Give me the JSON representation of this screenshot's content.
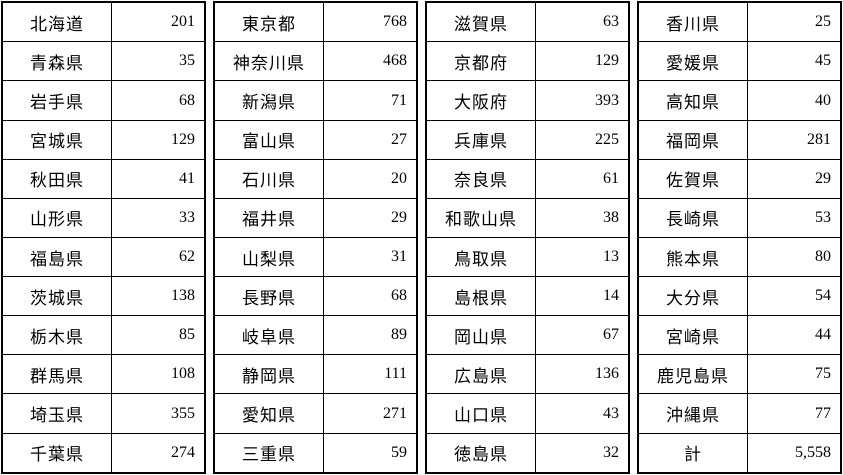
{
  "accent_colors": {
    "border": "#000000",
    "background": "#ffffff",
    "text": "#000000"
  },
  "table": {
    "description_names": [
      "prefecture",
      "value"
    ],
    "total_label": "計",
    "total_value": "5,558",
    "columns": [
      {
        "rows": [
          {
            "name": "北海道",
            "value": "201"
          },
          {
            "name": "青森県",
            "value": "35"
          },
          {
            "name": "岩手県",
            "value": "68"
          },
          {
            "name": "宮城県",
            "value": "129"
          },
          {
            "name": "秋田県",
            "value": "41"
          },
          {
            "name": "山形県",
            "value": "33"
          },
          {
            "name": "福島県",
            "value": "62"
          },
          {
            "name": "茨城県",
            "value": "138"
          },
          {
            "name": "栃木県",
            "value": "85"
          },
          {
            "name": "群馬県",
            "value": "108"
          },
          {
            "name": "埼玉県",
            "value": "355"
          },
          {
            "name": "千葉県",
            "value": "274"
          }
        ]
      },
      {
        "rows": [
          {
            "name": "東京都",
            "value": "768"
          },
          {
            "name": "神奈川県",
            "value": "468"
          },
          {
            "name": "新潟県",
            "value": "71"
          },
          {
            "name": "富山県",
            "value": "27"
          },
          {
            "name": "石川県",
            "value": "20"
          },
          {
            "name": "福井県",
            "value": "29"
          },
          {
            "name": "山梨県",
            "value": "31"
          },
          {
            "name": "長野県",
            "value": "68"
          },
          {
            "name": "岐阜県",
            "value": "89"
          },
          {
            "name": "静岡県",
            "value": "111"
          },
          {
            "name": "愛知県",
            "value": "271"
          },
          {
            "name": "三重県",
            "value": "59"
          }
        ]
      },
      {
        "rows": [
          {
            "name": "滋賀県",
            "value": "63"
          },
          {
            "name": "京都府",
            "value": "129"
          },
          {
            "name": "大阪府",
            "value": "393"
          },
          {
            "name": "兵庫県",
            "value": "225"
          },
          {
            "name": "奈良県",
            "value": "61"
          },
          {
            "name": "和歌山県",
            "value": "38"
          },
          {
            "name": "鳥取県",
            "value": "13"
          },
          {
            "name": "島根県",
            "value": "14"
          },
          {
            "name": "岡山県",
            "value": "67"
          },
          {
            "name": "広島県",
            "value": "136"
          },
          {
            "name": "山口県",
            "value": "43"
          },
          {
            "name": "徳島県",
            "value": "32"
          }
        ]
      },
      {
        "rows": [
          {
            "name": "香川県",
            "value": "25"
          },
          {
            "name": "愛媛県",
            "value": "45"
          },
          {
            "name": "高知県",
            "value": "40"
          },
          {
            "name": "福岡県",
            "value": "281"
          },
          {
            "name": "佐賀県",
            "value": "29"
          },
          {
            "name": "長崎県",
            "value": "53"
          },
          {
            "name": "熊本県",
            "value": "80"
          },
          {
            "name": "大分県",
            "value": "54"
          },
          {
            "name": "宮崎県",
            "value": "44"
          },
          {
            "name": "鹿児島県",
            "value": "75"
          },
          {
            "name": "沖縄県",
            "value": "77"
          },
          {
            "name": "計",
            "value": "5,558",
            "is_total": true
          }
        ]
      }
    ]
  }
}
